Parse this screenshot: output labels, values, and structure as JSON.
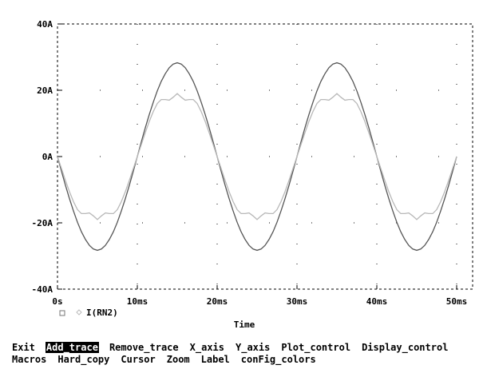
{
  "chart_data": {
    "type": "line",
    "xlabel": "Time",
    "ylabel": "",
    "xlim": [
      0,
      52
    ],
    "ylim": [
      -40,
      40
    ],
    "x_ticks": [
      0,
      10,
      20,
      30,
      40,
      50
    ],
    "x_tick_labels": [
      "0s",
      "10ms",
      "20ms",
      "30ms",
      "40ms",
      "50ms"
    ],
    "y_ticks": [
      -40,
      -20,
      0,
      20,
      40
    ],
    "y_tick_labels": [
      "-40A",
      "-20A",
      "0A",
      "20A",
      "40A"
    ],
    "grid": "dotted",
    "legend": "bottom-left",
    "series": [
      {
        "name": "",
        "color": "#555555",
        "x": [
          0,
          0.5,
          1,
          1.5,
          2,
          2.5,
          3,
          3.5,
          4,
          4.5,
          5,
          5.5,
          6,
          6.5,
          7,
          7.5,
          8,
          8.5,
          9,
          9.5,
          10,
          10.5,
          11,
          11.5,
          12,
          12.5,
          13,
          13.5,
          14,
          14.5,
          15,
          15.5,
          16,
          16.5,
          17,
          17.5,
          18,
          18.5,
          19,
          19.5,
          20,
          20.5,
          21,
          21.5,
          22,
          22.5,
          23,
          23.5,
          24,
          24.5,
          25,
          25.5,
          26,
          26.5,
          27,
          27.5,
          28,
          28.5,
          29,
          29.5,
          30,
          30.5,
          31,
          31.5,
          32,
          32.5,
          33,
          33.5,
          34,
          34.5,
          35,
          35.5,
          36,
          36.5,
          37,
          37.5,
          38,
          38.5,
          39,
          39.5,
          40,
          40.5,
          41,
          41.5,
          42,
          42.5,
          43,
          43.5,
          44,
          44.5,
          45,
          45.5,
          46,
          46.5,
          47,
          47.5,
          48,
          48.5,
          49,
          49.5,
          50
        ],
        "values": [
          0.0,
          -4.4,
          -8.7,
          -12.7,
          -16.4,
          -19.8,
          -22.7,
          -25.0,
          -26.8,
          -27.9,
          -28.3,
          -27.9,
          -26.8,
          -25.0,
          -22.7,
          -19.8,
          -16.4,
          -12.7,
          -8.7,
          -4.4,
          0.0,
          4.4,
          8.7,
          12.7,
          16.4,
          19.8,
          22.7,
          25.0,
          26.8,
          27.9,
          28.3,
          27.9,
          26.8,
          25.0,
          22.7,
          19.8,
          16.4,
          12.7,
          8.7,
          4.4,
          0.0,
          -4.4,
          -8.7,
          -12.7,
          -16.4,
          -19.8,
          -22.7,
          -25.0,
          -26.8,
          -27.9,
          -28.3,
          -27.9,
          -26.8,
          -25.0,
          -22.7,
          -19.8,
          -16.4,
          -12.7,
          -8.7,
          -4.4,
          0.0,
          4.4,
          8.7,
          12.7,
          16.4,
          19.8,
          22.7,
          25.0,
          26.8,
          27.9,
          28.3,
          27.9,
          26.8,
          25.0,
          22.7,
          19.8,
          16.4,
          12.7,
          8.7,
          4.4,
          0.0,
          -4.4,
          -8.7,
          -12.7,
          -16.4,
          -19.8,
          -22.7,
          -25.0,
          -26.8,
          -27.9,
          -28.3,
          -27.9,
          -26.8,
          -25.0,
          -22.7,
          -19.8,
          -16.4,
          -12.7,
          -8.7,
          -4.4,
          0.0
        ]
      },
      {
        "name": "I(RN2)",
        "color": "#b8b8b8",
        "x": [
          0,
          0.5,
          1,
          1.5,
          2,
          2.5,
          3,
          3.5,
          4,
          4.5,
          5,
          5.5,
          6,
          6.5,
          7,
          7.5,
          8,
          8.5,
          9,
          9.5,
          10,
          10.5,
          11,
          11.5,
          12,
          12.5,
          13,
          13.5,
          14,
          14.5,
          15,
          15.5,
          16,
          16.5,
          17,
          17.5,
          18,
          18.5,
          19,
          19.5,
          20,
          20.5,
          21,
          21.5,
          22,
          22.5,
          23,
          23.5,
          24,
          24.5,
          25,
          25.5,
          26,
          26.5,
          27,
          27.5,
          28,
          28.5,
          29,
          29.5,
          30,
          30.5,
          31,
          31.5,
          32,
          32.5,
          33,
          33.5,
          34,
          34.5,
          35,
          35.5,
          36,
          36.5,
          37,
          37.5,
          38,
          38.5,
          39,
          39.5,
          40,
          40.5,
          41,
          41.5,
          42,
          42.5,
          43,
          43.5,
          44,
          44.5,
          45,
          45.5,
          46,
          46.5,
          47,
          47.5,
          48,
          48.5,
          49,
          49.5,
          50
        ],
        "values": [
          0.0,
          -3.6,
          -7.2,
          -10.6,
          -13.6,
          -16.0,
          -17.2,
          -17.2,
          -17.0,
          -17.9,
          -19.0,
          -17.9,
          -17.0,
          -17.2,
          -17.2,
          -16.0,
          -13.6,
          -10.6,
          -7.2,
          -3.6,
          0.0,
          3.6,
          7.2,
          10.6,
          13.6,
          16.0,
          17.2,
          17.2,
          17.0,
          17.9,
          19.0,
          17.9,
          17.0,
          17.2,
          17.2,
          16.0,
          13.6,
          10.6,
          7.2,
          3.6,
          0.0,
          -3.6,
          -7.2,
          -10.6,
          -13.6,
          -16.0,
          -17.2,
          -17.2,
          -17.0,
          -17.9,
          -19.0,
          -17.9,
          -17.0,
          -17.2,
          -17.2,
          -16.0,
          -13.6,
          -10.6,
          -7.2,
          -3.6,
          0.0,
          3.6,
          7.2,
          10.6,
          13.6,
          16.0,
          17.2,
          17.2,
          17.0,
          17.9,
          19.0,
          17.9,
          17.0,
          17.2,
          17.2,
          16.0,
          13.6,
          10.6,
          7.2,
          3.6,
          0.0,
          -3.6,
          -7.2,
          -10.6,
          -13.6,
          -16.0,
          -17.2,
          -17.2,
          -17.0,
          -17.9,
          -19.0,
          -17.9,
          -17.0,
          -17.2,
          -17.2,
          -16.0,
          -13.6,
          -10.6,
          -7.2,
          -3.6,
          0.0
        ]
      }
    ]
  },
  "legend_markers": {
    "square": "square-marker",
    "diamond": "diamond-marker"
  },
  "menu": {
    "row1": [
      {
        "label": "Exit",
        "selected": false
      },
      {
        "label": "Add_trace",
        "selected": true
      },
      {
        "label": "Remove_trace",
        "selected": false
      },
      {
        "label": "X_axis",
        "selected": false
      },
      {
        "label": "Y_axis",
        "selected": false
      },
      {
        "label": "Plot_control",
        "selected": false
      },
      {
        "label": "Display_control",
        "selected": false
      }
    ],
    "row2": [
      {
        "label": "Macros",
        "selected": false
      },
      {
        "label": "Hard_copy",
        "selected": false
      },
      {
        "label": "Cursor",
        "selected": false
      },
      {
        "label": "Zoom",
        "selected": false
      },
      {
        "label": "Label",
        "selected": false
      },
      {
        "label": "conFig_colors",
        "selected": false
      }
    ]
  }
}
